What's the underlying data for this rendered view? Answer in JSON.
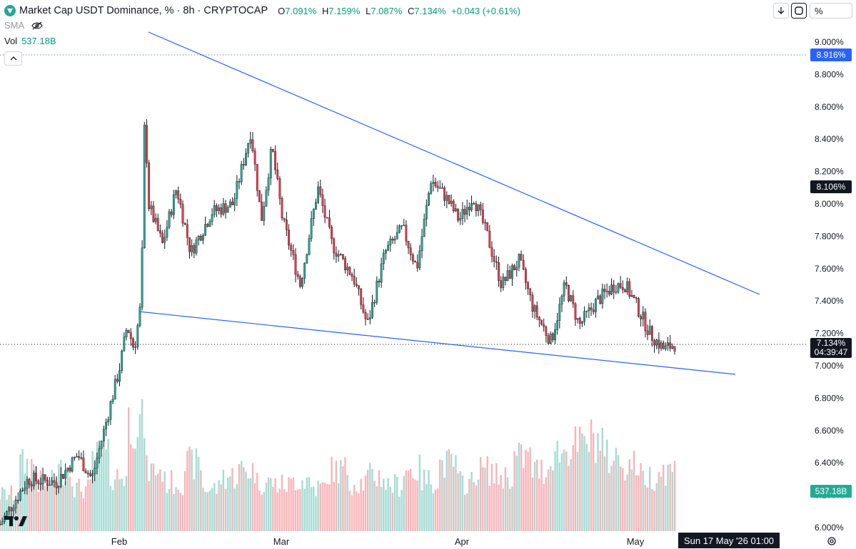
{
  "header": {
    "title": "Market Cap USDT Dominance, % · 8h · CRYPTOCAP",
    "o_label": "O",
    "o_value": "7.091%",
    "h_label": "H",
    "h_value": "7.159%",
    "l_label": "L",
    "l_value": "7.087%",
    "c_label": "C",
    "c_value": "7.134%",
    "change": "+0.043 (+0.61%)",
    "sma_label": "SMA",
    "vol_label": "Vol",
    "vol_value": "537.18B"
  },
  "toolbar": {
    "scale_mode": "%"
  },
  "price_axis": {
    "ticks": [
      "9.000%",
      "8.800%",
      "8.600%",
      "8.400%",
      "8.200%",
      "8.000%",
      "7.800%",
      "7.600%",
      "7.400%",
      "7.200%",
      "7.000%",
      "6.800%",
      "6.600%",
      "6.400%",
      "6.200%",
      "6.000%"
    ],
    "high_line_label": "8.916%",
    "level_label": "8.106%",
    "last_price_label": "7.134%",
    "countdown": "04:39:47",
    "volume_label": "537.18B"
  },
  "time_axis": {
    "labels": [
      "Feb",
      "Mar",
      "Apr",
      "May"
    ],
    "cursor_time": "Sun 17 May '26   01:00"
  },
  "colors": {
    "up": "#22ab94",
    "down": "#f23645",
    "trendline": "#2962ff",
    "axis_text": "#131722"
  },
  "chart_data": {
    "type": "candlestick",
    "title": "Market Cap USDT Dominance, %",
    "interval": "8h",
    "ylim": [
      6.0,
      9.1
    ],
    "y_unit": "%",
    "last_close": 7.134,
    "high_marker": 8.916,
    "price_level": 8.106,
    "close_path_points": [
      {
        "t": 0.0,
        "y": 6.02
      },
      {
        "t": 0.04,
        "y": 6.3
      },
      {
        "t": 0.08,
        "y": 6.28
      },
      {
        "t": 0.11,
        "y": 6.45
      },
      {
        "t": 0.13,
        "y": 6.3
      },
      {
        "t": 0.15,
        "y": 6.65
      },
      {
        "t": 0.17,
        "y": 7.0
      },
      {
        "t": 0.18,
        "y": 7.25
      },
      {
        "t": 0.19,
        "y": 7.1
      },
      {
        "t": 0.2,
        "y": 7.4
      },
      {
        "t": 0.205,
        "y": 8.6
      },
      {
        "t": 0.21,
        "y": 8.0
      },
      {
        "t": 0.23,
        "y": 7.75
      },
      {
        "t": 0.25,
        "y": 8.1
      },
      {
        "t": 0.27,
        "y": 7.7
      },
      {
        "t": 0.3,
        "y": 7.95
      },
      {
        "t": 0.33,
        "y": 8.0
      },
      {
        "t": 0.355,
        "y": 8.45
      },
      {
        "t": 0.37,
        "y": 7.9
      },
      {
        "t": 0.385,
        "y": 8.35
      },
      {
        "t": 0.4,
        "y": 7.9
      },
      {
        "t": 0.425,
        "y": 7.5
      },
      {
        "t": 0.45,
        "y": 8.1
      },
      {
        "t": 0.47,
        "y": 7.75
      },
      {
        "t": 0.5,
        "y": 7.55
      },
      {
        "t": 0.52,
        "y": 7.25
      },
      {
        "t": 0.545,
        "y": 7.7
      },
      {
        "t": 0.57,
        "y": 7.85
      },
      {
        "t": 0.59,
        "y": 7.6
      },
      {
        "t": 0.61,
        "y": 8.15
      },
      {
        "t": 0.63,
        "y": 8.05
      },
      {
        "t": 0.65,
        "y": 7.9
      },
      {
        "t": 0.67,
        "y": 8.05
      },
      {
        "t": 0.69,
        "y": 7.8
      },
      {
        "t": 0.71,
        "y": 7.5
      },
      {
        "t": 0.735,
        "y": 7.65
      },
      {
        "t": 0.755,
        "y": 7.35
      },
      {
        "t": 0.78,
        "y": 7.15
      },
      {
        "t": 0.8,
        "y": 7.5
      },
      {
        "t": 0.82,
        "y": 7.25
      },
      {
        "t": 0.845,
        "y": 7.4
      },
      {
        "t": 0.87,
        "y": 7.5
      },
      {
        "t": 0.885,
        "y": 7.5
      },
      {
        "t": 0.9,
        "y": 7.38
      },
      {
        "t": 0.92,
        "y": 7.2
      },
      {
        "t": 0.94,
        "y": 7.1
      },
      {
        "t": 0.955,
        "y": 7.134
      }
    ],
    "volume_levels": [
      0.3,
      0.55,
      0.4,
      0.5,
      0.35,
      0.6,
      0.45,
      0.9,
      0.5,
      0.4,
      0.55,
      0.35,
      0.45,
      0.5,
      0.4,
      0.38,
      0.42,
      0.36,
      0.5,
      0.4,
      0.45,
      0.38,
      0.5,
      0.42,
      0.55,
      0.4,
      0.5,
      0.45,
      0.6,
      0.5,
      0.65,
      0.7,
      0.75,
      0.6,
      0.55,
      0.45,
      0.5
    ]
  }
}
